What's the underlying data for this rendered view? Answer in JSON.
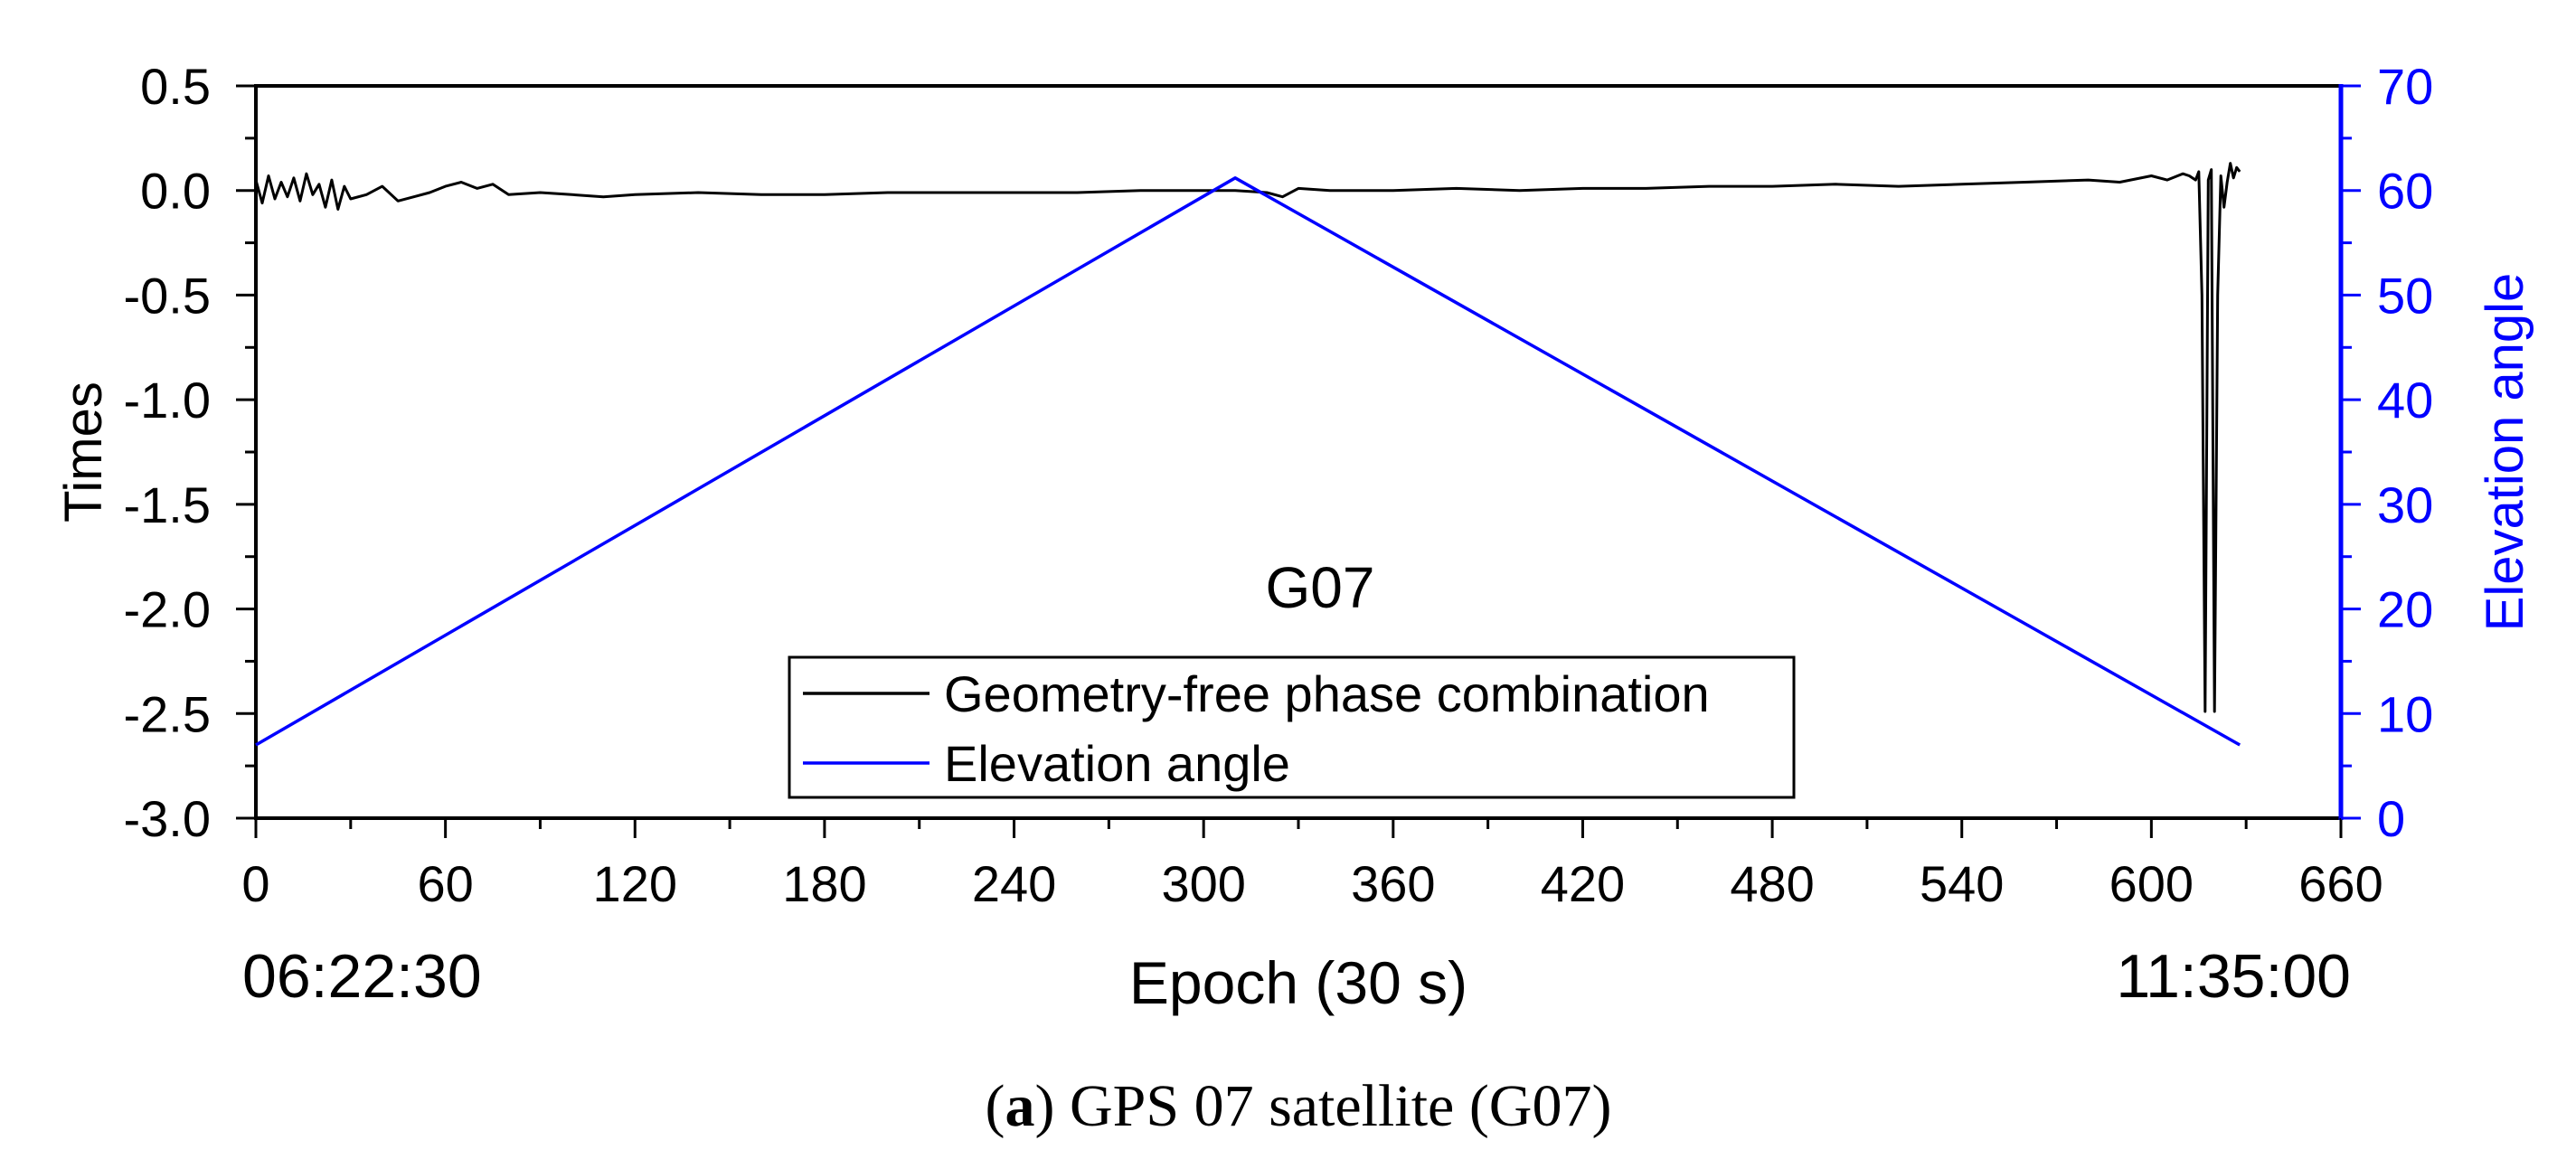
{
  "figure_caption": {
    "label": "a",
    "text": " GPS 07 satellite (G07)"
  },
  "chart_data": {
    "type": "line",
    "title": "G07",
    "xlabel": "Epoch (30 s)",
    "ylabel": "Times",
    "y2label": "Elevation angle",
    "xlim": [
      0,
      660
    ],
    "ylim": [
      -3.0,
      0.5
    ],
    "y2lim": [
      0,
      70
    ],
    "x_ticks": [
      "0",
      "60",
      "120",
      "180",
      "240",
      "300",
      "360",
      "420",
      "480",
      "540",
      "600",
      "660"
    ],
    "y_ticks": [
      "0.5",
      "0.0",
      "-0.5",
      "-1.0",
      "-1.5",
      "-2.0",
      "-2.5",
      "-3.0"
    ],
    "y2_ticks": [
      "70",
      "60",
      "50",
      "40",
      "30",
      "20",
      "10",
      "0"
    ],
    "time_start": "06:22:30",
    "time_end": "11:35:00",
    "grid": false,
    "legend_position": "bottom-center",
    "colors": {
      "gf": "#000000",
      "elevation": "#0000ff",
      "right_axis": "#0000ff"
    },
    "series": [
      {
        "name": "Geometry-free phase combination",
        "axis": "left",
        "color": "#000000",
        "x": [
          0,
          2,
          4,
          6,
          8,
          10,
          12,
          14,
          16,
          18,
          20,
          22,
          24,
          26,
          28,
          30,
          35,
          40,
          45,
          50,
          55,
          60,
          65,
          70,
          75,
          80,
          90,
          100,
          110,
          120,
          140,
          160,
          180,
          200,
          220,
          240,
          260,
          280,
          300,
          310,
          320,
          325,
          330,
          340,
          360,
          380,
          400,
          420,
          440,
          460,
          480,
          500,
          520,
          540,
          560,
          580,
          590,
          600,
          605,
          610,
          612,
          614,
          615,
          616,
          617,
          618,
          619,
          620,
          621,
          622,
          623,
          624,
          625,
          626,
          627,
          628
        ],
        "y": [
          0.05,
          -0.06,
          0.07,
          -0.04,
          0.04,
          -0.03,
          0.06,
          -0.05,
          0.08,
          -0.02,
          0.03,
          -0.08,
          0.05,
          -0.09,
          0.02,
          -0.04,
          -0.02,
          0.02,
          -0.05,
          -0.03,
          -0.01,
          0.02,
          0.04,
          0.01,
          0.03,
          -0.02,
          -0.01,
          -0.02,
          -0.03,
          -0.02,
          -0.01,
          -0.02,
          -0.02,
          -0.01,
          -0.01,
          -0.01,
          -0.01,
          0.0,
          0.0,
          0.0,
          -0.01,
          -0.03,
          0.01,
          0.0,
          0.0,
          0.01,
          0.0,
          0.01,
          0.01,
          0.02,
          0.02,
          0.03,
          0.02,
          0.03,
          0.04,
          0.05,
          0.04,
          0.07,
          0.05,
          0.08,
          0.07,
          0.05,
          0.09,
          -0.5,
          -2.49,
          0.05,
          0.1,
          -2.49,
          -0.5,
          0.07,
          -0.08,
          0.04,
          0.13,
          0.06,
          0.11,
          0.09
        ]
      },
      {
        "name": "Elevation angle",
        "axis": "right",
        "color": "#0000ff",
        "x": [
          0,
          310,
          628
        ],
        "y": [
          7.0,
          61.2,
          7.0
        ]
      }
    ]
  }
}
